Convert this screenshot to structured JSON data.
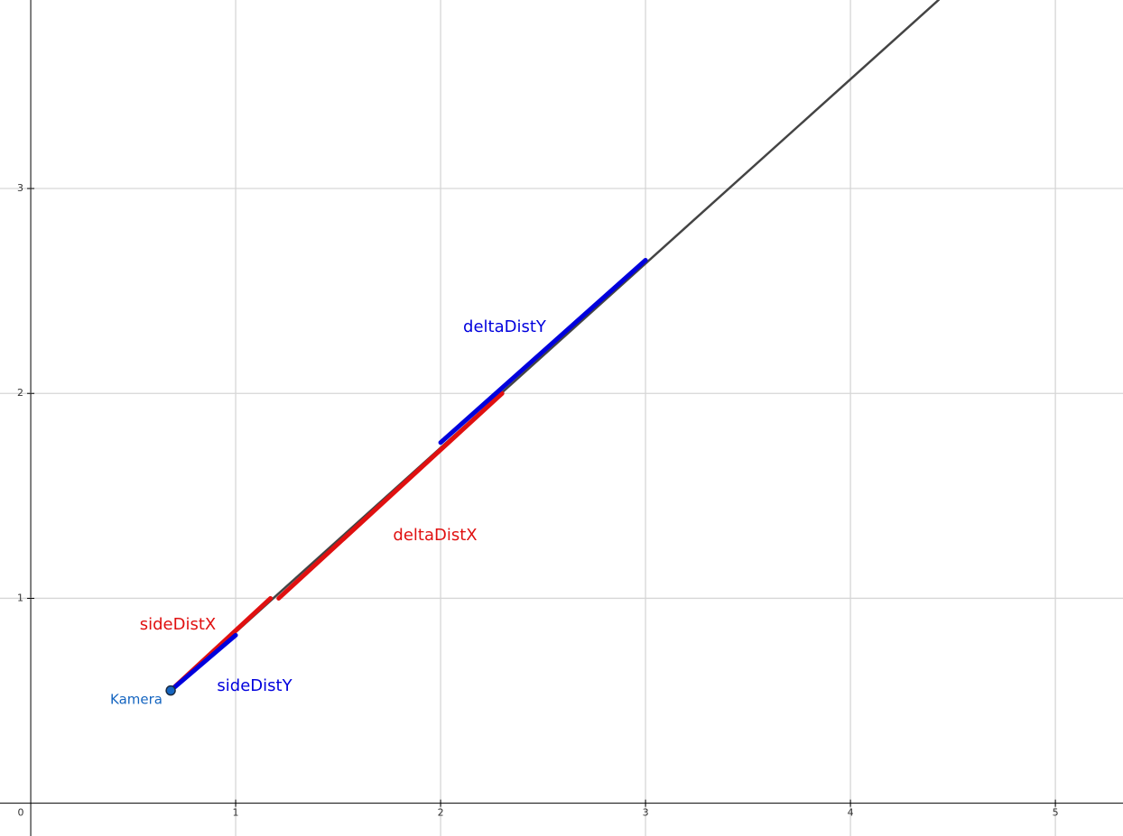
{
  "chart_data": {
    "type": "line",
    "xlim": [
      -0.15,
      5.33
    ],
    "ylim": [
      -0.16,
      3.92
    ],
    "xticks": [
      0,
      1,
      2,
      3,
      4,
      5
    ],
    "yticks": [
      1,
      2,
      3
    ],
    "grid": true,
    "series": [
      {
        "color": "#444444",
        "x": [
          0.683,
          4.43
        ],
        "y": [
          0.55,
          3.92
        ]
      },
      {
        "name": "sideDistX",
        "color": "#e01010",
        "x": [
          0.683,
          1.17
        ],
        "y": [
          0.55,
          1.0
        ]
      },
      {
        "name": "sideDistY",
        "color": "#0000dd",
        "x": [
          0.683,
          1.0
        ],
        "y": [
          0.55,
          0.82
        ]
      },
      {
        "name": "deltaDistX",
        "color": "#e01010",
        "x": [
          1.21,
          2.3
        ],
        "y": [
          1.0,
          2.0
        ]
      },
      {
        "name": "deltaDistY",
        "color": "#0000dd",
        "x": [
          2.0,
          3.0
        ],
        "y": [
          1.76,
          2.65
        ]
      }
    ],
    "point": {
      "name": "Kamera",
      "color": "#1565c0",
      "x": 0.683,
      "y": 0.55
    }
  }
}
